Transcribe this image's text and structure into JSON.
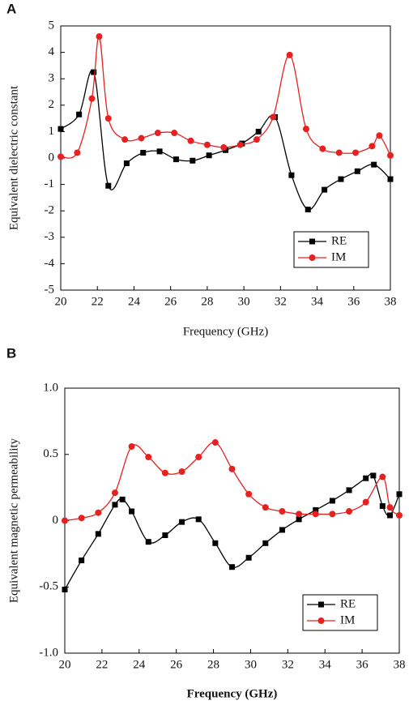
{
  "chart_data": [
    {
      "type": "line",
      "panel_label": "A",
      "xlabel": "Frequency (GHz)",
      "ylabel": "Equivalent dielectric constant",
      "xlim": [
        20,
        38
      ],
      "xticks": [
        20,
        22,
        24,
        26,
        28,
        30,
        32,
        34,
        36,
        38
      ],
      "ylim": [
        -5,
        5
      ],
      "yticks": [
        -5,
        -4,
        -3,
        -2,
        -1,
        0,
        1,
        2,
        3,
        4,
        5
      ],
      "legend": "lower right",
      "series": [
        {
          "name": "RE",
          "color": "#000000",
          "marker": "square",
          "x": [
            20,
            21,
            21.8,
            22.6,
            23.6,
            24.5,
            25.4,
            26.3,
            27.2,
            28.1,
            29.0,
            29.9,
            30.8,
            31.7,
            32.6,
            33.5,
            34.4,
            35.3,
            36.2,
            37.1,
            38
          ],
          "values": [
            1.1,
            1.65,
            3.25,
            -1.05,
            -0.2,
            0.2,
            0.25,
            -0.05,
            -0.1,
            0.1,
            0.3,
            0.55,
            1.0,
            1.55,
            -0.65,
            -1.95,
            -1.2,
            -0.8,
            -0.5,
            -0.25,
            -0.8
          ]
        },
        {
          "name": "IM",
          "color": "#e8201f",
          "marker": "circle",
          "x": [
            20,
            20.9,
            21.7,
            22.1,
            22.6,
            23.5,
            24.4,
            25.3,
            26.2,
            27.1,
            28,
            28.9,
            29.8,
            30.7,
            31.6,
            32.5,
            33.4,
            34.3,
            35.2,
            36.1,
            37,
            37.4,
            38
          ],
          "values": [
            0.05,
            0.2,
            2.25,
            4.6,
            1.5,
            0.7,
            0.75,
            0.95,
            0.95,
            0.65,
            0.5,
            0.4,
            0.5,
            0.7,
            1.55,
            3.9,
            1.1,
            0.35,
            0.2,
            0.2,
            0.45,
            0.85,
            0.1
          ]
        }
      ]
    },
    {
      "type": "line",
      "panel_label": "B",
      "xlabel": "Frequency (GHz)",
      "ylabel": "Equivalent magnetic permeability",
      "xlim": [
        20,
        38
      ],
      "xticks": [
        20,
        22,
        24,
        26,
        28,
        30,
        32,
        34,
        36,
        38
      ],
      "ylim": [
        -1,
        1
      ],
      "yticks": [
        {
          "value": -1,
          "label": "-1.0"
        },
        -0.5,
        0,
        0.5,
        {
          "value": 1,
          "label": "1.0"
        }
      ],
      "legend": "lower right",
      "series": [
        {
          "name": "RE",
          "color": "#000000",
          "marker": "square",
          "x": [
            20,
            20.9,
            21.8,
            22.7,
            23.1,
            23.6,
            24.5,
            25.4,
            26.3,
            27.2,
            28.1,
            29,
            29.9,
            30.8,
            31.7,
            32.6,
            33.5,
            34.4,
            35.3,
            36.2,
            36.6,
            37.1,
            37.5,
            38
          ],
          "values": [
            -0.52,
            -0.3,
            -0.1,
            0.12,
            0.16,
            0.07,
            -0.16,
            -0.11,
            -0.01,
            0.01,
            -0.17,
            -0.35,
            -0.28,
            -0.17,
            -0.07,
            0.01,
            0.08,
            0.15,
            0.23,
            0.32,
            0.34,
            0.11,
            0.04,
            0.2
          ]
        },
        {
          "name": "IM",
          "color": "#e8201f",
          "marker": "circle",
          "x": [
            20,
            20.9,
            21.8,
            22.7,
            23.6,
            24.5,
            25.4,
            26.3,
            27.2,
            28.1,
            29,
            29.9,
            30.8,
            31.7,
            32.6,
            33.5,
            34.4,
            35.3,
            36.2,
            37.1,
            37.5,
            38
          ],
          "values": [
            0.0,
            0.02,
            0.06,
            0.21,
            0.56,
            0.48,
            0.36,
            0.37,
            0.48,
            0.59,
            0.39,
            0.2,
            0.1,
            0.07,
            0.05,
            0.05,
            0.05,
            0.07,
            0.14,
            0.33,
            0.1,
            0.04
          ]
        }
      ]
    }
  ]
}
